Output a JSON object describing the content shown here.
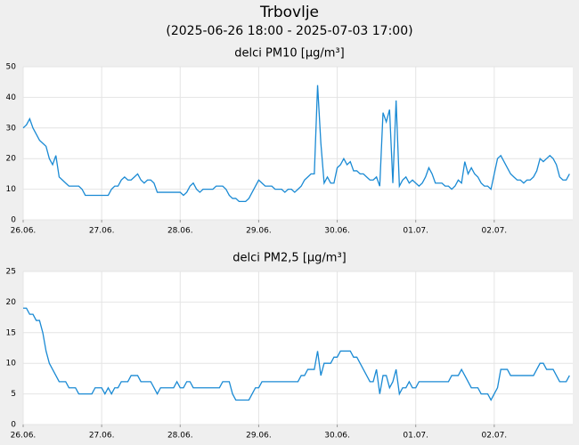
{
  "header": {
    "title": "Trbovlje",
    "subtitle": "(2025-06-26 18:00 - 2025-07-03 17:00)"
  },
  "chart_data": [
    {
      "type": "line",
      "title": "delci PM10 [µg/m³]",
      "color": "#1a8ad4",
      "grid": true,
      "categories": [
        "26.06.",
        null,
        null,
        null,
        null,
        null,
        null,
        null,
        null,
        null,
        null,
        null,
        null,
        null,
        null,
        null,
        null,
        null,
        null,
        null,
        null,
        null,
        null,
        null,
        "27.06.",
        null,
        null,
        null,
        null,
        null,
        null,
        null,
        null,
        null,
        null,
        null,
        null,
        null,
        null,
        null,
        null,
        null,
        null,
        null,
        null,
        null,
        null,
        null,
        "28.06.",
        null,
        null,
        null,
        null,
        null,
        null,
        null,
        null,
        null,
        null,
        null,
        null,
        null,
        null,
        null,
        null,
        null,
        null,
        null,
        null,
        null,
        null,
        null,
        "29.06.",
        null,
        null,
        null,
        null,
        null,
        null,
        null,
        null,
        null,
        null,
        null,
        null,
        null,
        null,
        null,
        null,
        null,
        null,
        null,
        null,
        null,
        null,
        null,
        "30.06.",
        null,
        null,
        null,
        null,
        null,
        null,
        null,
        null,
        null,
        null,
        null,
        null,
        null,
        null,
        null,
        null,
        null,
        null,
        null,
        null,
        null,
        null,
        null,
        "01.07.",
        null,
        null,
        null,
        null,
        null,
        null,
        null,
        null,
        null,
        null,
        null,
        null,
        null,
        null,
        null,
        null,
        null,
        null,
        null,
        null,
        null,
        null,
        null,
        "02.07.",
        null,
        null,
        null,
        null,
        null,
        null,
        null,
        null,
        null,
        null,
        null,
        null,
        null,
        null,
        null,
        null,
        null,
        null,
        null,
        null,
        null,
        null,
        null
      ],
      "values": [
        30,
        31,
        33,
        30,
        28,
        26,
        25,
        24,
        20,
        18,
        21,
        14,
        13,
        12,
        11,
        11,
        11,
        11,
        10,
        8,
        8,
        8,
        8,
        8,
        8,
        8,
        8,
        10,
        11,
        11,
        13,
        14,
        13,
        13,
        14,
        15,
        13,
        12,
        13,
        13,
        12,
        9,
        9,
        9,
        9,
        9,
        9,
        9,
        9,
        8,
        9,
        11,
        12,
        10,
        9,
        10,
        10,
        10,
        10,
        11,
        11,
        11,
        10,
        8,
        7,
        7,
        6,
        6,
        6,
        7,
        9,
        11,
        13,
        12,
        11,
        11,
        11,
        10,
        10,
        10,
        9,
        10,
        10,
        9,
        10,
        11,
        13,
        14,
        15,
        15,
        44,
        25,
        12,
        14,
        12,
        12,
        17,
        18,
        20,
        18,
        19,
        16,
        16,
        15,
        15,
        14,
        13,
        13,
        14,
        11,
        35,
        32,
        36,
        12,
        39,
        11,
        13,
        14,
        12,
        13,
        12,
        11,
        12,
        14,
        17,
        15,
        12,
        12,
        12,
        11,
        11,
        10,
        11,
        13,
        12,
        19,
        15,
        17,
        15,
        14,
        12,
        11,
        11,
        10,
        15,
        20,
        21,
        19,
        17,
        15,
        14,
        13,
        13,
        12,
        13,
        13,
        14,
        16,
        20,
        19,
        20,
        21,
        20,
        18,
        14,
        13,
        13,
        15
      ],
      "ylim": [
        0,
        50
      ],
      "yticks": [
        0,
        10,
        20,
        30,
        40,
        50
      ]
    },
    {
      "type": "line",
      "title": "delci PM2,5 [µg/m³]",
      "color": "#1a8ad4",
      "grid": true,
      "categories": [
        "26.06.",
        null,
        null,
        null,
        null,
        null,
        null,
        null,
        null,
        null,
        null,
        null,
        null,
        null,
        null,
        null,
        null,
        null,
        null,
        null,
        null,
        null,
        null,
        null,
        "27.06.",
        null,
        null,
        null,
        null,
        null,
        null,
        null,
        null,
        null,
        null,
        null,
        null,
        null,
        null,
        null,
        null,
        null,
        null,
        null,
        null,
        null,
        null,
        null,
        "28.06.",
        null,
        null,
        null,
        null,
        null,
        null,
        null,
        null,
        null,
        null,
        null,
        null,
        null,
        null,
        null,
        null,
        null,
        null,
        null,
        null,
        null,
        null,
        null,
        "29.06.",
        null,
        null,
        null,
        null,
        null,
        null,
        null,
        null,
        null,
        null,
        null,
        null,
        null,
        null,
        null,
        null,
        null,
        null,
        null,
        null,
        null,
        null,
        null,
        "30.06.",
        null,
        null,
        null,
        null,
        null,
        null,
        null,
        null,
        null,
        null,
        null,
        null,
        null,
        null,
        null,
        null,
        null,
        null,
        null,
        null,
        null,
        null,
        null,
        "01.07.",
        null,
        null,
        null,
        null,
        null,
        null,
        null,
        null,
        null,
        null,
        null,
        null,
        null,
        null,
        null,
        null,
        null,
        null,
        null,
        null,
        null,
        null,
        null,
        "02.07.",
        null,
        null,
        null,
        null,
        null,
        null,
        null,
        null,
        null,
        null,
        null,
        null,
        null,
        null,
        null,
        null,
        null,
        null,
        null,
        null,
        null,
        null,
        null
      ],
      "values": [
        19,
        19,
        18,
        18,
        17,
        17,
        15,
        12,
        10,
        9,
        8,
        7,
        7,
        7,
        6,
        6,
        6,
        5,
        5,
        5,
        5,
        5,
        6,
        6,
        6,
        5,
        6,
        5,
        6,
        6,
        7,
        7,
        7,
        8,
        8,
        8,
        7,
        7,
        7,
        7,
        6,
        5,
        6,
        6,
        6,
        6,
        6,
        7,
        6,
        6,
        7,
        7,
        6,
        6,
        6,
        6,
        6,
        6,
        6,
        6,
        6,
        7,
        7,
        7,
        5,
        4,
        4,
        4,
        4,
        4,
        5,
        6,
        6,
        7,
        7,
        7,
        7,
        7,
        7,
        7,
        7,
        7,
        7,
        7,
        7,
        8,
        8,
        9,
        9,
        9,
        12,
        8,
        10,
        10,
        10,
        11,
        11,
        12,
        12,
        12,
        12,
        11,
        11,
        10,
        9,
        8,
        7,
        7,
        9,
        5,
        8,
        8,
        6,
        7,
        9,
        5,
        6,
        6,
        7,
        6,
        6,
        7,
        7,
        7,
        7,
        7,
        7,
        7,
        7,
        7,
        7,
        8,
        8,
        8,
        9,
        8,
        7,
        6,
        6,
        6,
        5,
        5,
        5,
        4,
        5,
        6,
        9,
        9,
        9,
        8,
        8,
        8,
        8,
        8,
        8,
        8,
        8,
        9,
        10,
        10,
        9,
        9,
        9,
        8,
        7,
        7,
        7,
        8
      ],
      "ylim": [
        0,
        25
      ],
      "yticks": [
        0,
        5,
        10,
        15,
        20,
        25
      ]
    }
  ]
}
